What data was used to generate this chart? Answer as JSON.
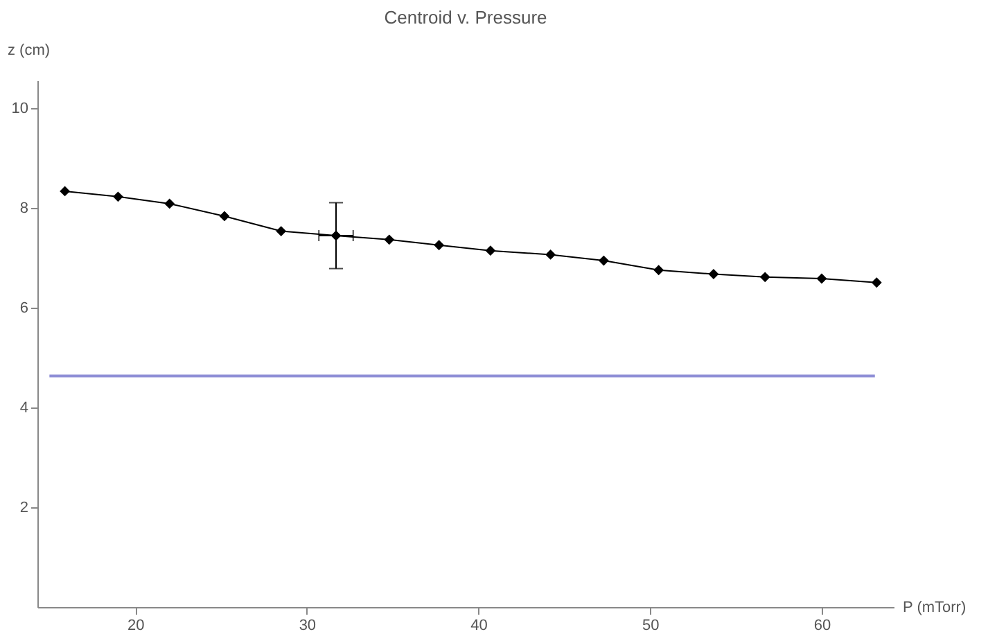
{
  "chart_data": {
    "type": "line",
    "title": "Centroid v. Pressure",
    "xlabel": "P (mTorr)",
    "ylabel": "z (cm)",
    "xlim": [
      14.3,
      64.2
    ],
    "ylim": [
      0,
      10.55
    ],
    "xticks": [
      20,
      30,
      40,
      50,
      60
    ],
    "yticks": [
      2,
      4,
      6,
      8,
      10
    ],
    "marker": "diamond",
    "series": [
      {
        "color": "#000000",
        "x": [
          15.9,
          19.0,
          22.0,
          25.2,
          28.5,
          31.7,
          34.8,
          37.7,
          40.7,
          44.2,
          47.3,
          50.5,
          53.7,
          56.7,
          60.0,
          63.2
        ],
        "values": [
          8.33,
          8.22,
          8.08,
          7.83,
          7.53,
          7.44,
          7.36,
          7.25,
          7.14,
          7.06,
          6.94,
          6.75,
          6.67,
          6.61,
          6.58,
          6.5
        ],
        "errors": [
          null,
          null,
          null,
          null,
          null,
          [
            6.78,
            8.1
          ],
          null,
          null,
          null,
          null,
          null,
          null,
          null,
          null,
          null,
          null
        ],
        "xerrors": [
          null,
          null,
          null,
          null,
          null,
          [
            30.7,
            32.7
          ],
          null,
          null,
          null,
          null,
          null,
          null,
          null,
          null,
          null,
          null
        ]
      },
      {
        "color": "#8f8fd6",
        "marker": "none",
        "x": [
          15.0,
          63.1
        ],
        "values": [
          4.63,
          4.63
        ]
      }
    ]
  }
}
